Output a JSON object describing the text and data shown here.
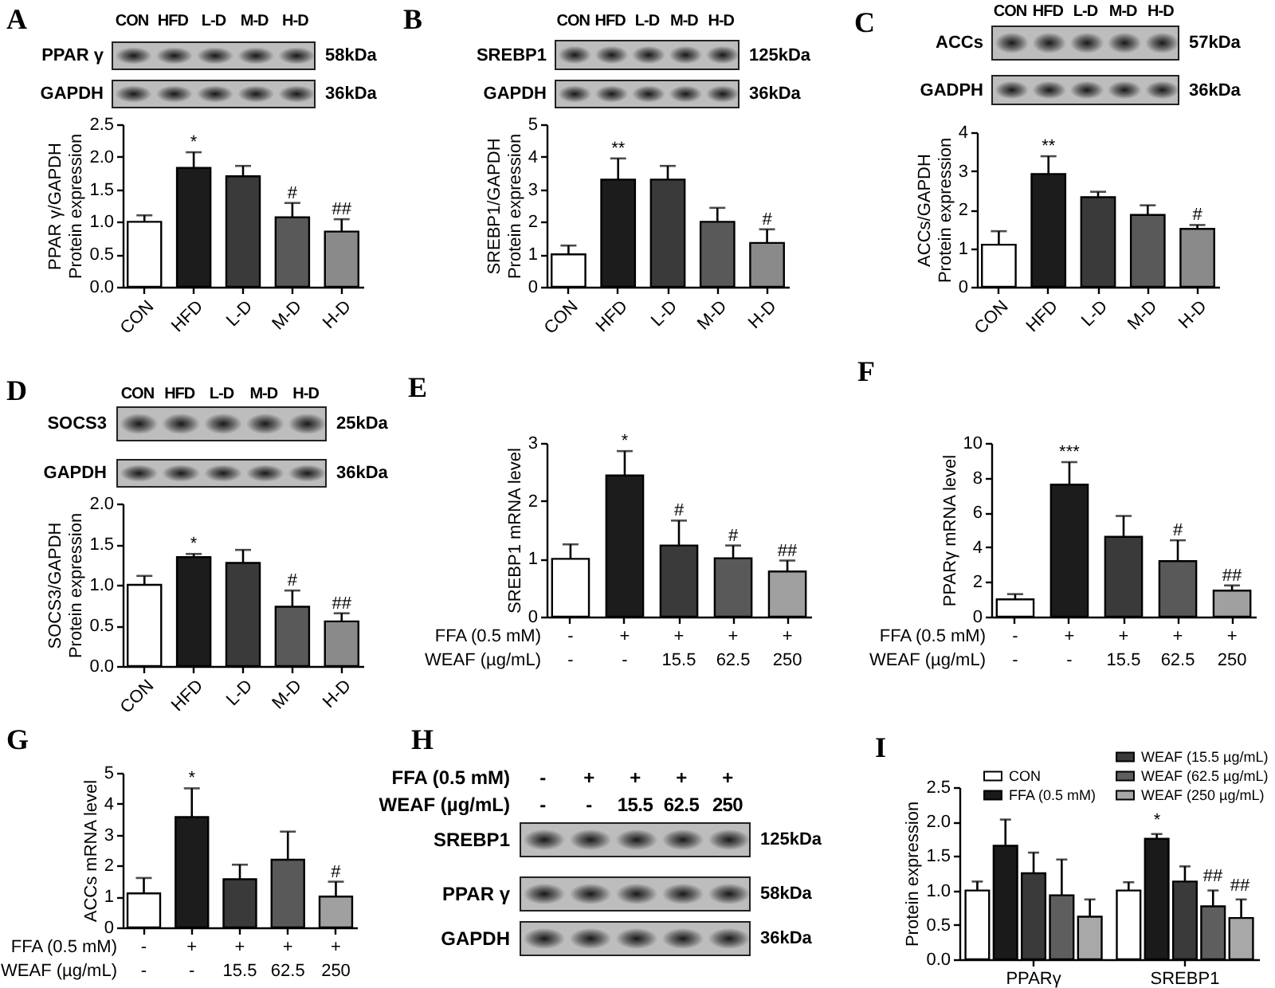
{
  "chart_data": [
    {
      "type": "other",
      "title": "A",
      "categories": [
        "CON",
        "HFD",
        "L-D",
        "M-D",
        "H-D"
      ],
      "y_categories": [
        "PPAR γ",
        "GAPDH"
      ],
      "y2_categories": [
        "58kDa",
        "36kDa"
      ]
    },
    {
      "type": "bar",
      "categories": [
        "CON",
        "HFD",
        "L-D",
        "M-D",
        "H-D"
      ],
      "values": [
        1.0,
        1.83,
        1.7,
        1.07,
        0.85
      ],
      "errors": [
        [
          1.0,
          1.1
        ],
        [
          1.83,
          2.07
        ],
        [
          1.7,
          1.86
        ],
        [
          1.07,
          1.29
        ],
        [
          0.85,
          1.04
        ]
      ],
      "colors": [
        "#ffffff",
        "#1c1c1c",
        "#3a3a3a",
        "#595959",
        "#8a8a8a"
      ],
      "ylabel": "PPAR γ/GAPDH\nProtein expression",
      "ylim": [
        0,
        2.5
      ],
      "yticks": [
        {
          "value": 0,
          "label": "0.0"
        },
        0.5,
        {
          "value": 1,
          "label": "1.0"
        },
        1.5,
        {
          "value": 2,
          "label": "2.0"
        },
        2.5
      ],
      "annotations": [
        {
          "text": "*",
          "x": "HFD",
          "y": 2.07
        },
        {
          "text": "#",
          "x": "M-D",
          "y": 1.29
        },
        {
          "text": "##",
          "x": "H-D",
          "y": 1.04
        }
      ]
    },
    {
      "type": "other",
      "title": "B",
      "categories": [
        "CON",
        "HFD",
        "L-D",
        "M-D",
        "H-D"
      ],
      "y_categories": [
        "SREBP1",
        "GAPDH"
      ],
      "y2_categories": [
        "125kDa",
        "36kDa"
      ]
    },
    {
      "type": "bar",
      "categories": [
        "CON",
        "HFD",
        "L-D",
        "M-D",
        "H-D"
      ],
      "values": [
        1.0,
        3.3,
        3.3,
        2.0,
        1.35
      ],
      "errors": [
        [
          1.0,
          1.27
        ],
        [
          3.3,
          3.95
        ],
        [
          3.3,
          3.72
        ],
        [
          2.0,
          2.43
        ],
        [
          1.35,
          1.77
        ]
      ],
      "colors": [
        "#ffffff",
        "#1c1c1c",
        "#3a3a3a",
        "#595959",
        "#8a8a8a"
      ],
      "ylabel": "SREBP1/GAPDH\nProtein expression",
      "ylim": [
        0,
        5
      ],
      "yticks": [
        0,
        1,
        2,
        3,
        4,
        5
      ],
      "annotations": [
        {
          "text": "**",
          "x": "HFD",
          "y": 3.95
        },
        {
          "text": "#",
          "x": "H-D",
          "y": 1.77
        }
      ]
    },
    {
      "type": "other",
      "title": "C",
      "categories": [
        "CON",
        "HFD",
        "L-D",
        "M-D",
        "H-D"
      ],
      "y_categories": [
        "ACCs",
        "GADPH"
      ],
      "y2_categories": [
        "57kDa",
        "36kDa"
      ]
    },
    {
      "type": "bar",
      "categories": [
        "CON",
        "HFD",
        "L-D",
        "M-D",
        "H-D"
      ],
      "values": [
        1.09,
        2.92,
        2.32,
        1.86,
        1.5
      ],
      "errors": [
        [
          1.09,
          1.44
        ],
        [
          2.92,
          3.38
        ],
        [
          2.32,
          2.46
        ],
        [
          1.86,
          2.11
        ],
        [
          1.5,
          1.6
        ]
      ],
      "colors": [
        "#ffffff",
        "#1c1c1c",
        "#3a3a3a",
        "#595959",
        "#8a8a8a"
      ],
      "ylabel": "ACCs/GAPDH\nProtein expression",
      "ylim": [
        0,
        4
      ],
      "yticks": [
        0,
        1,
        2,
        3,
        4
      ],
      "annotations": [
        {
          "text": "**",
          "x": "HFD",
          "y": 3.38
        },
        {
          "text": "#",
          "x": "H-D",
          "y": 1.6
        }
      ]
    },
    {
      "type": "other",
      "title": "D",
      "categories": [
        "CON",
        "HFD",
        "L-D",
        "M-D",
        "H-D"
      ],
      "y_categories": [
        "SOCS3",
        "GAPDH"
      ],
      "y2_categories": [
        "25kDa",
        "36kDa"
      ]
    },
    {
      "type": "bar",
      "categories": [
        "CON",
        "HFD",
        "L-D",
        "M-D",
        "H-D"
      ],
      "values": [
        1.0,
        1.34,
        1.27,
        0.73,
        0.55
      ],
      "errors": [
        [
          1.0,
          1.11
        ],
        [
          1.34,
          1.38
        ],
        [
          1.27,
          1.43
        ],
        [
          0.73,
          0.93
        ],
        [
          0.55,
          0.65
        ]
      ],
      "colors": [
        "#ffffff",
        "#1c1c1c",
        "#3a3a3a",
        "#595959",
        "#8a8a8a"
      ],
      "ylabel": "SOCS3/GAPDH\nProtein expression",
      "ylim": [
        0,
        2
      ],
      "yticks": [
        {
          "value": 0,
          "label": "0.0"
        },
        0.5,
        {
          "value": 1,
          "label": "1.0"
        },
        1.5,
        {
          "value": 2,
          "label": "2.0"
        }
      ],
      "annotations": [
        {
          "text": "*",
          "x": "HFD",
          "y": 1.38
        },
        {
          "text": "#",
          "x": "M-D",
          "y": 0.93
        },
        {
          "text": "##",
          "x": "H-D",
          "y": 0.65
        }
      ]
    },
    {
      "type": "bar",
      "title": "E",
      "categories": [
        "-\n-",
        "+\n-",
        "+\n15.5",
        "+\n62.5",
        "+\n250"
      ],
      "xlabel": "FFA (0.5 mM)\nWEAF (µg/mL)",
      "values": [
        1.0,
        2.44,
        1.23,
        1.01,
        0.78
      ],
      "errors": [
        [
          1.0,
          1.25
        ],
        [
          2.44,
          2.86
        ],
        [
          1.23,
          1.66
        ],
        [
          1.01,
          1.23
        ],
        [
          0.78,
          0.97
        ]
      ],
      "colors": [
        "#ffffff",
        "#1c1c1c",
        "#3a3a3a",
        "#595959",
        "#a0a0a0"
      ],
      "ylabel": "SREBP1 mRNA level",
      "ylim": [
        0,
        3
      ],
      "yticks": [
        0,
        1,
        2,
        3
      ],
      "annotations": [
        {
          "text": "*",
          "x": "+\n-",
          "y": 2.86
        },
        {
          "text": "#",
          "x": "+\n15.5",
          "y": 1.66
        },
        {
          "text": "#",
          "x": "+\n62.5",
          "y": 1.23
        },
        {
          "text": "##",
          "x": "+\n250",
          "y": 0.97
        }
      ]
    },
    {
      "type": "bar",
      "title": "F",
      "categories": [
        "-\n-",
        "+\n-",
        "+\n15.5",
        "+\n62.5",
        "+\n250"
      ],
      "xlabel": "FFA (0.5 mM)\nWEAF (µg/mL)",
      "values": [
        1.0,
        7.6,
        4.6,
        3.2,
        1.5
      ],
      "errors": [
        [
          1.0,
          1.3
        ],
        [
          7.6,
          8.9
        ],
        [
          4.6,
          5.8
        ],
        [
          3.2,
          4.4
        ],
        [
          1.5,
          1.8
        ]
      ],
      "colors": [
        "#ffffff",
        "#1c1c1c",
        "#3a3a3a",
        "#595959",
        "#a0a0a0"
      ],
      "ylabel": "PPARγ mRNA level",
      "ylim": [
        0,
        10
      ],
      "yticks": [
        0,
        2,
        4,
        6,
        8,
        10
      ],
      "annotations": [
        {
          "text": "***",
          "x": "+\n-",
          "y": 8.9
        },
        {
          "text": "#",
          "x": "+\n62.5",
          "y": 4.4
        },
        {
          "text": "##",
          "x": "+\n250",
          "y": 1.8
        }
      ]
    },
    {
      "type": "bar",
      "title": "G",
      "categories": [
        "-\n-",
        "+\n-",
        "+\n15.5",
        "+\n62.5",
        "+\n250"
      ],
      "xlabel": "FFA (0.5 mM)\nWEAF (µg/mL)",
      "values": [
        1.1,
        3.57,
        1.56,
        2.19,
        1.0
      ],
      "errors": [
        [
          1.1,
          1.6
        ],
        [
          3.57,
          4.5
        ],
        [
          1.56,
          2.03
        ],
        [
          2.19,
          3.1
        ],
        [
          1.0,
          1.48
        ]
      ],
      "colors": [
        "#ffffff",
        "#1c1c1c",
        "#3a3a3a",
        "#595959",
        "#a0a0a0"
      ],
      "ylabel": "ACCs mRNA level",
      "ylim": [
        0,
        5
      ],
      "yticks": [
        0,
        1,
        2,
        3,
        4,
        5
      ],
      "annotations": [
        {
          "text": "*",
          "x": "+\n-",
          "y": 4.5
        },
        {
          "text": "#",
          "x": "+\n250",
          "y": 1.48
        }
      ]
    },
    {
      "type": "other",
      "title": "H",
      "categories": [
        "-\n-",
        "+\n-",
        "+\n15.5",
        "+\n62.5",
        "+\n250"
      ],
      "xlabel": "FFA (0.5 mM)\nWEAF (µg/mL)",
      "y_categories": [
        "SREBP1",
        "PPAR γ",
        "GAPDH"
      ],
      "y2_categories": [
        "125kDa",
        "58kDa",
        "36kDa"
      ]
    },
    {
      "type": "bar",
      "title": "I",
      "categories": [
        "PPARγ",
        "SREBP1"
      ],
      "series": [
        {
          "name": "CON",
          "color": "#ffffff",
          "values": [
            1.0,
            1.0
          ],
          "errors": [
            [
              1.0,
              1.13
            ],
            [
              1.0,
              1.12
            ]
          ]
        },
        {
          "name": "FFA (0.5 mM)",
          "color": "#1a1a1a",
          "values": [
            1.65,
            1.75
          ],
          "errors": [
            [
              1.65,
              2.03
            ],
            [
              1.75,
              1.82
            ]
          ]
        },
        {
          "name": "WEAF (15.5 µg/mL)",
          "color": "#3a3a3a",
          "values": [
            1.25,
            1.13
          ],
          "errors": [
            [
              1.25,
              1.55
            ],
            [
              1.13,
              1.35
            ]
          ]
        },
        {
          "name": "WEAF (62.5 µg/mL)",
          "color": "#5e5e5e",
          "values": [
            0.93,
            0.77
          ],
          "errors": [
            [
              0.93,
              1.45
            ],
            [
              0.77,
              1.0
            ]
          ]
        },
        {
          "name": "WEAF (250 µg/mL)",
          "color": "#a8a8a8",
          "values": [
            0.62,
            0.6
          ],
          "errors": [
            [
              0.62,
              0.87
            ],
            [
              0.6,
              0.87
            ]
          ]
        }
      ],
      "ylabel": "Protein expression",
      "ylim": [
        0,
        2.5
      ],
      "yticks": [
        {
          "value": 0,
          "label": "0.0"
        },
        0.5,
        {
          "value": 1,
          "label": "1.0"
        },
        1.5,
        {
          "value": 2,
          "label": "2.0"
        },
        2.5
      ],
      "legend": "top right",
      "annotations": [
        "*",
        "##",
        "##"
      ]
    }
  ]
}
